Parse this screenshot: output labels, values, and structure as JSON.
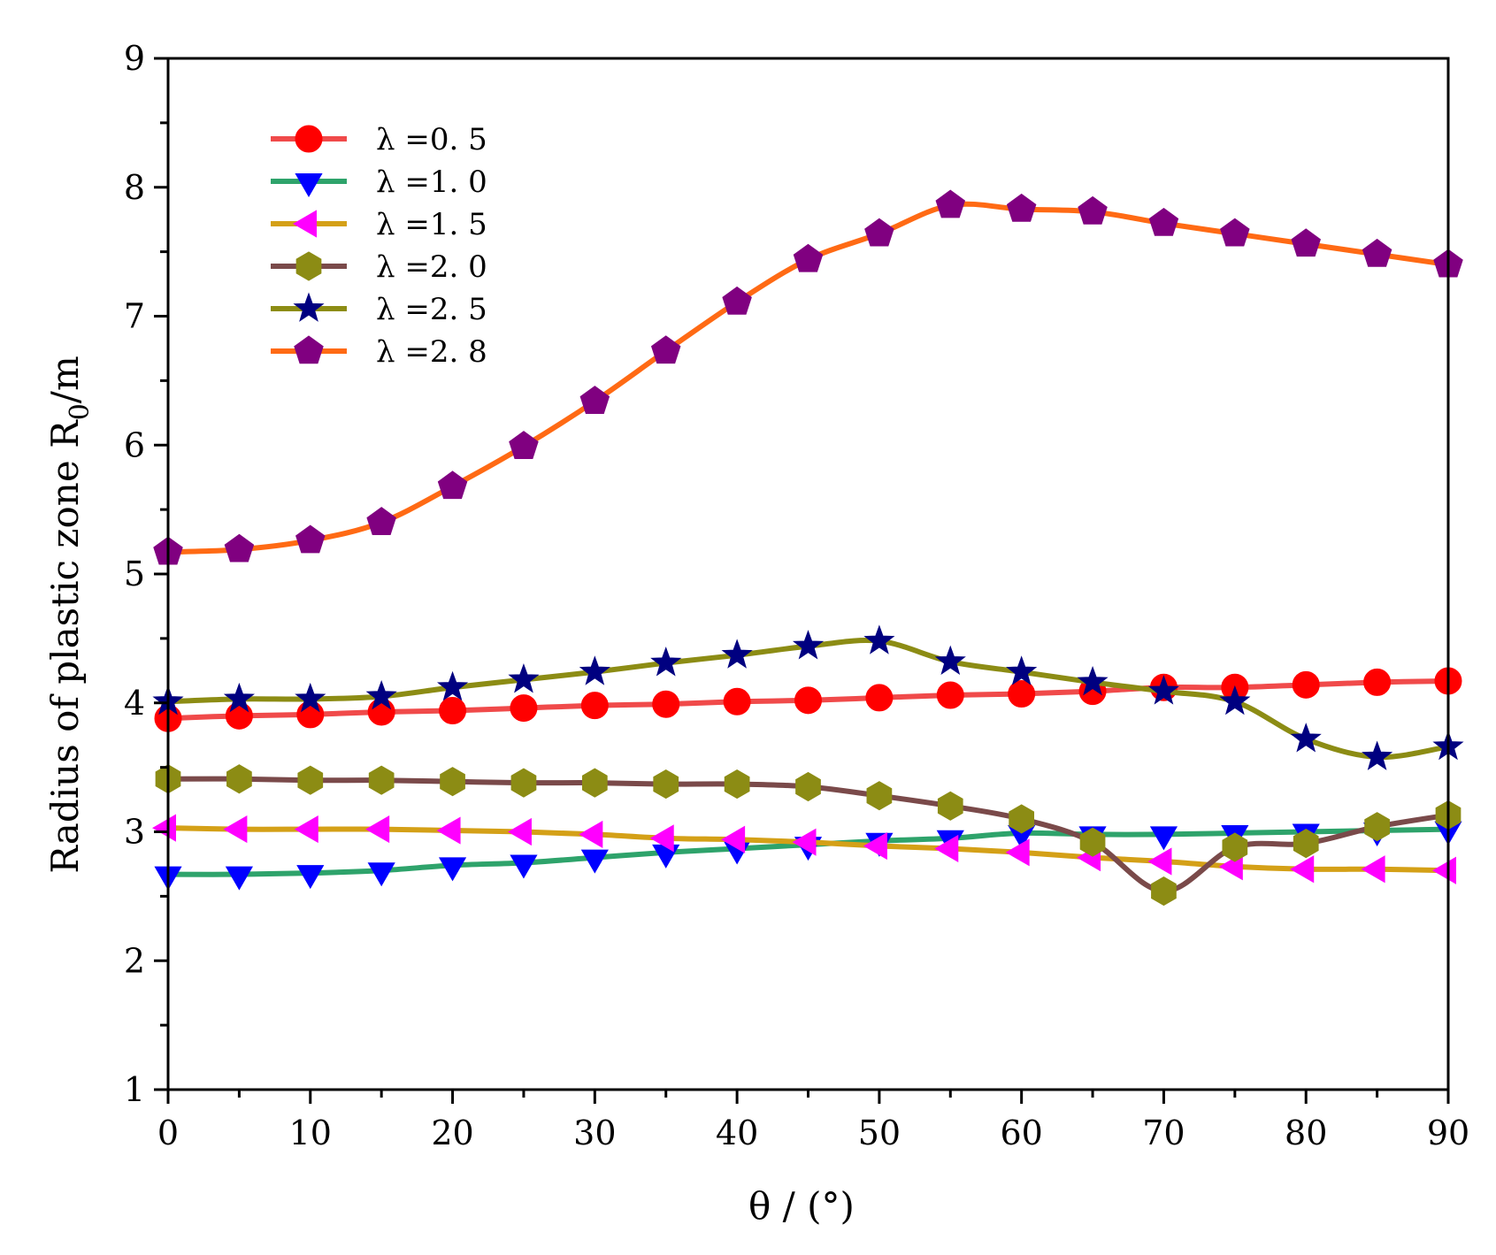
{
  "chart_data": {
    "type": "line",
    "title": "",
    "xlabel": "θ / (°)",
    "ylabel": "Radius of plastic zone R0/m",
    "ylabel_main": "Radius of plastic zone R",
    "ylabel_sub": "0",
    "ylabel_tail": "/m",
    "xlim": [
      0,
      90
    ],
    "ylim": [
      1,
      9
    ],
    "x_ticks": [
      0,
      10,
      20,
      30,
      40,
      50,
      60,
      70,
      80,
      90
    ],
    "y_ticks": [
      1,
      2,
      3,
      4,
      5,
      6,
      7,
      8,
      9
    ],
    "grid": false,
    "legend_position": "top-left",
    "x": [
      0,
      5,
      10,
      15,
      20,
      25,
      30,
      35,
      40,
      45,
      50,
      55,
      60,
      65,
      70,
      75,
      80,
      85,
      90
    ],
    "series": [
      {
        "name": "λ =0. 5",
        "line_color": "#f04a4a",
        "marker_color": "#ff0000",
        "marker": "circle",
        "values": [
          3.88,
          3.9,
          3.91,
          3.93,
          3.94,
          3.96,
          3.98,
          3.99,
          4.01,
          4.02,
          4.04,
          4.06,
          4.07,
          4.09,
          4.12,
          4.12,
          4.14,
          4.16,
          4.17
        ]
      },
      {
        "name": "λ =1. 0",
        "line_color": "#2ea36b",
        "marker_color": "#0000ff",
        "marker": "triangle-down",
        "values": [
          2.67,
          2.67,
          2.68,
          2.7,
          2.74,
          2.76,
          2.8,
          2.84,
          2.87,
          2.9,
          2.93,
          2.95,
          2.99,
          2.98,
          2.98,
          2.99,
          3.0,
          3.01,
          3.02
        ]
      },
      {
        "name": "λ =1. 5",
        "line_color": "#d4a017",
        "marker_color": "#ff00ff",
        "marker": "triangle-left",
        "values": [
          3.03,
          3.02,
          3.02,
          3.02,
          3.01,
          3.0,
          2.98,
          2.95,
          2.94,
          2.92,
          2.89,
          2.87,
          2.84,
          2.8,
          2.77,
          2.73,
          2.71,
          2.71,
          2.7
        ]
      },
      {
        "name": "λ =2. 0",
        "line_color": "#7a4a4a",
        "marker_color": "#8c8c14",
        "marker": "hexagon",
        "values": [
          3.41,
          3.41,
          3.4,
          3.4,
          3.39,
          3.38,
          3.38,
          3.37,
          3.37,
          3.35,
          3.28,
          3.2,
          3.1,
          2.92,
          2.54,
          2.88,
          2.91,
          3.04,
          3.13
        ]
      },
      {
        "name": "λ =2. 5",
        "line_color": "#8c8c14",
        "marker_color": "#000080",
        "marker": "star",
        "values": [
          4.01,
          4.03,
          4.03,
          4.05,
          4.12,
          4.18,
          4.24,
          4.31,
          4.37,
          4.44,
          4.48,
          4.32,
          4.24,
          4.16,
          4.09,
          4.01,
          3.72,
          3.58,
          3.66
        ]
      },
      {
        "name": "λ =2. 8",
        "line_color": "#ff6a14",
        "marker_color": "#800080",
        "marker": "pentagon",
        "values": [
          5.17,
          5.19,
          5.26,
          5.4,
          5.68,
          5.99,
          6.34,
          6.73,
          7.11,
          7.44,
          7.64,
          7.86,
          7.83,
          7.81,
          7.72,
          7.64,
          7.56,
          7.48,
          7.4
        ]
      }
    ]
  }
}
